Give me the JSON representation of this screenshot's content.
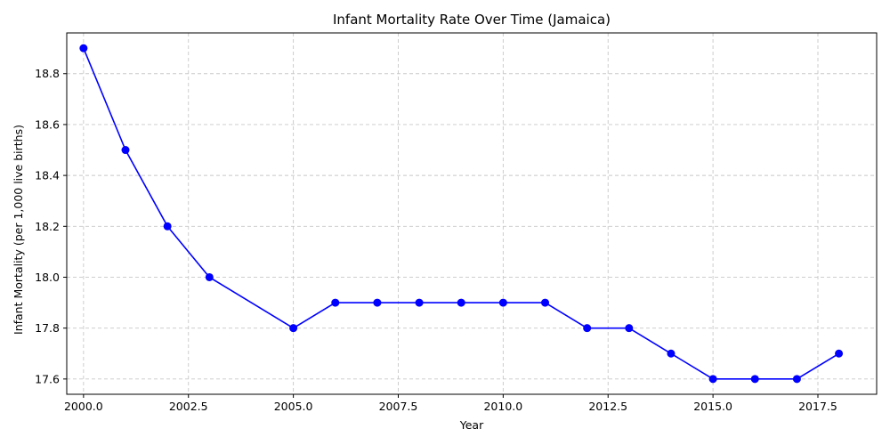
{
  "chart_data": {
    "type": "line",
    "title": "Infant Mortality Rate Over Time (Jamaica)",
    "xlabel": "Year",
    "ylabel": "Infant Mortality (per 1,000 live births)",
    "x": [
      2000,
      2001,
      2002,
      2003,
      2005,
      2006,
      2007,
      2008,
      2009,
      2010,
      2011,
      2012,
      2013,
      2014,
      2015,
      2016,
      2017,
      2018
    ],
    "series": [
      {
        "values": [
          18.9,
          18.5,
          18.2,
          18.0,
          17.8,
          17.9,
          17.9,
          17.9,
          17.9,
          17.9,
          17.9,
          17.8,
          17.8,
          17.7,
          17.6,
          17.6,
          17.6,
          17.7
        ],
        "color": "#0000ff",
        "marker": "circle"
      }
    ],
    "xlim": [
      1999.6,
      2018.9
    ],
    "ylim": [
      17.54,
      18.96
    ],
    "xticks": [
      "2000.0",
      "2002.5",
      "2005.0",
      "2007.5",
      "2010.0",
      "2012.5",
      "2015.0",
      "2017.5"
    ],
    "yticks": [
      "17.6",
      "17.8",
      "18.0",
      "18.2",
      "18.4",
      "18.6",
      "18.8"
    ],
    "grid": true,
    "grid_style": "dashed",
    "grid_color": "#c8c8c8"
  }
}
